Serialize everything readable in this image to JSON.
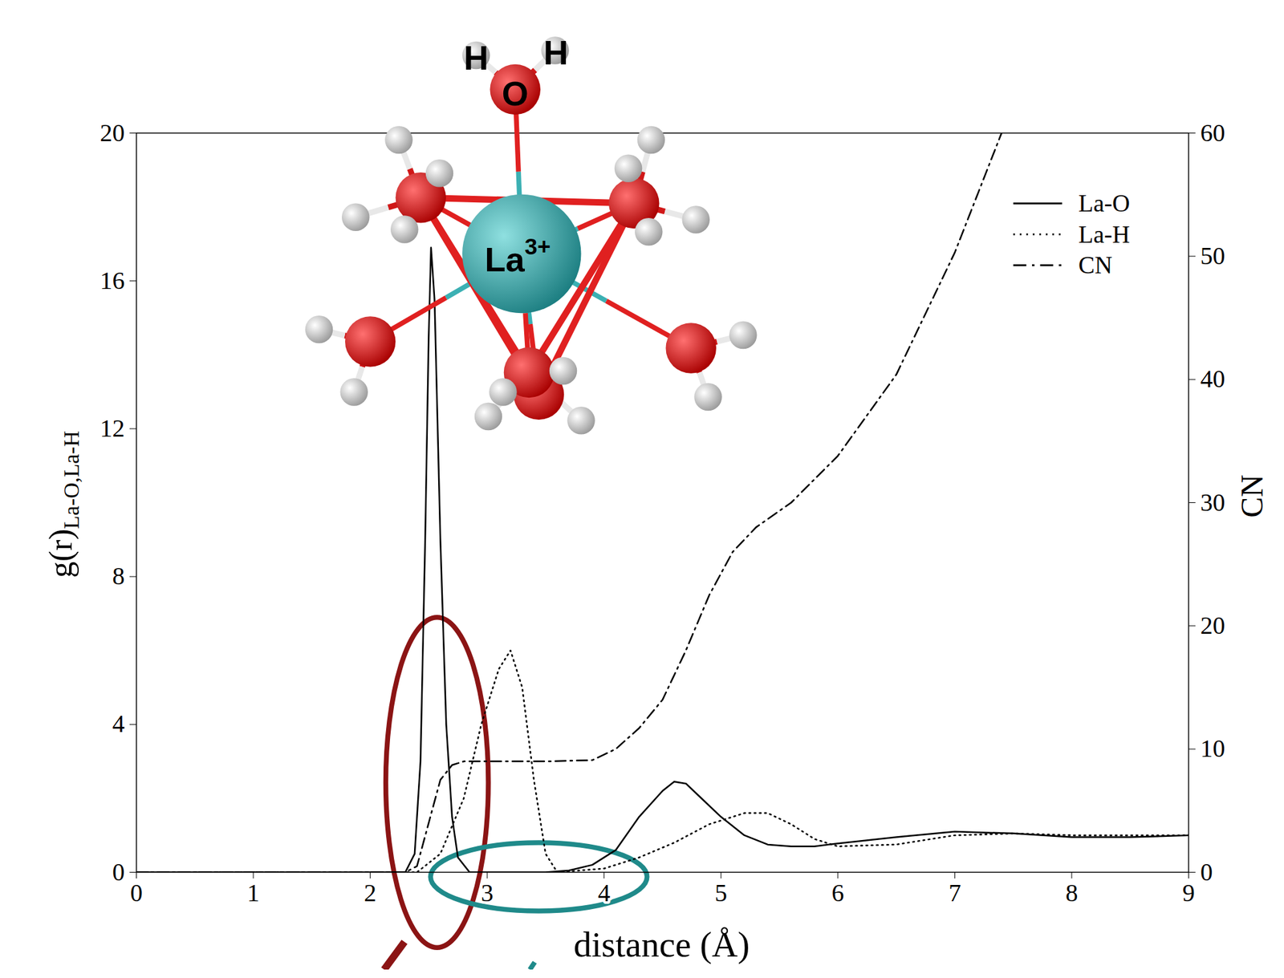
{
  "chart_data": {
    "type": "line",
    "xlabel": "distance (Å)",
    "ylabel": {
      "text": "g(r)",
      "subscript": "La-O,La-H"
    },
    "y2label": "CN",
    "xlim": [
      0,
      9
    ],
    "xticks": [
      0,
      1,
      2,
      3,
      4,
      5,
      6,
      7,
      8,
      9
    ],
    "ylim": [
      0,
      20
    ],
    "yticks": [
      0,
      4,
      8,
      12,
      16,
      20
    ],
    "y2lim": [
      0,
      60
    ],
    "y2ticks": [
      0,
      10,
      20,
      30,
      40,
      50,
      60
    ],
    "grid": false,
    "legend": "top-right",
    "series": [
      {
        "name": "La-O",
        "color": "#000000",
        "line_style": "solid",
        "axis": "y",
        "x": [
          0,
          2.3,
          2.38,
          2.43,
          2.47,
          2.5,
          2.52,
          2.55,
          2.6,
          2.65,
          2.7,
          2.75,
          2.85,
          3.5,
          3.7,
          3.9,
          4.1,
          4.3,
          4.5,
          4.6,
          4.7,
          4.8,
          5.0,
          5.2,
          5.4,
          5.6,
          5.8,
          6.0,
          6.5,
          7.0,
          7.5,
          8.0,
          8.5,
          9.0
        ],
        "values": [
          0,
          0,
          0.5,
          3,
          9,
          14.5,
          16.9,
          15.5,
          9,
          4,
          1.5,
          0.4,
          0,
          0,
          0.05,
          0.2,
          0.6,
          1.5,
          2.2,
          2.45,
          2.4,
          2.1,
          1.5,
          1.0,
          0.75,
          0.7,
          0.7,
          0.78,
          0.95,
          1.1,
          1.05,
          0.95,
          0.95,
          1.0
        ]
      },
      {
        "name": "La-H",
        "color": "#000000",
        "line_style": "dotted",
        "axis": "y",
        "x": [
          0,
          2.4,
          2.6,
          2.8,
          2.95,
          3.1,
          3.2,
          3.3,
          3.4,
          3.5,
          3.6,
          4.0,
          4.3,
          4.6,
          4.9,
          5.2,
          5.4,
          5.6,
          5.8,
          6.0,
          6.5,
          7.0,
          7.5,
          8.0,
          9.0
        ],
        "values": [
          0,
          0,
          0.5,
          2.0,
          4.0,
          5.5,
          6.0,
          5.0,
          2.5,
          0.5,
          0,
          0.1,
          0.4,
          0.8,
          1.3,
          1.6,
          1.6,
          1.3,
          0.9,
          0.7,
          0.75,
          1.0,
          1.05,
          1.0,
          1.0
        ]
      },
      {
        "name": "CN",
        "color": "#000000",
        "line_style": "dashdot",
        "axis": "y2",
        "x": [
          0,
          2.3,
          2.4,
          2.5,
          2.6,
          2.7,
          2.8,
          3.5,
          3.9,
          4.1,
          4.3,
          4.5,
          4.7,
          4.9,
          5.1,
          5.3,
          5.6,
          6.0,
          6.5,
          7.0,
          7.4
        ],
        "values": [
          0,
          0,
          0.5,
          4,
          7.5,
          8.7,
          9,
          9,
          9.1,
          10,
          11.7,
          14,
          18,
          22.5,
          26,
          28,
          30,
          33.8,
          40.4,
          50.3,
          60
        ]
      }
    ],
    "annotations": [
      {
        "text": "H"
      },
      {
        "text": "H"
      },
      {
        "text": "O"
      },
      {
        "text": "La",
        "superscript": "3+"
      }
    ]
  }
}
